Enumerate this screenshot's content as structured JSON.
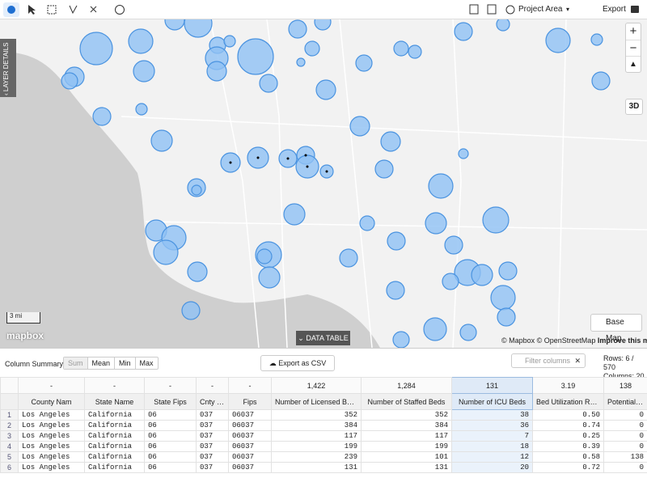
{
  "toolbar": {
    "project_area": "Project Area",
    "export": "Export"
  },
  "map": {
    "layer_details": "LAYER DETAILS",
    "zoom_in": "+",
    "zoom_out": "−",
    "btn_3d": "3D",
    "scale": "3 mi",
    "logo": "mapbox",
    "data_table": "DATA TABLE",
    "base_map": "Base Map",
    "attribution": "© Mapbox © OpenStreetMap",
    "improve": "Improve this map"
  },
  "panel": {
    "column_summary": "Column Summary:",
    "summary_options": [
      "Sum",
      "Mean",
      "Min",
      "Max"
    ],
    "export_csv": "Export as CSV",
    "filter_placeholder": "Filter columns",
    "rows_info": "Rows: 6 / 570",
    "columns_info": "Columns: 20"
  },
  "table": {
    "summary": [
      "-",
      "-",
      "-",
      "-",
      "-",
      "1,422",
      "1,284",
      "131",
      "3.19",
      "138"
    ],
    "headers": [
      "County Nam",
      "State Name",
      "State Fips",
      "Cnty Fips",
      "Fips",
      "Number of Licensed Beds",
      "Number of Staffed Beds",
      "Number of ICU Beds",
      "Bed Utilization Rate",
      "Potential In…"
    ],
    "rows": [
      [
        "1",
        "Los Angeles",
        "California",
        "06",
        "037",
        "06037",
        "352",
        "352",
        "38",
        "0.50",
        "0"
      ],
      [
        "2",
        "Los Angeles",
        "California",
        "06",
        "037",
        "06037",
        "384",
        "384",
        "36",
        "0.74",
        "0"
      ],
      [
        "3",
        "Los Angeles",
        "California",
        "06",
        "037",
        "06037",
        "117",
        "117",
        "7",
        "0.25",
        "0"
      ],
      [
        "4",
        "Los Angeles",
        "California",
        "06",
        "037",
        "06037",
        "199",
        "199",
        "18",
        "0.39",
        "0"
      ],
      [
        "5",
        "Los Angeles",
        "California",
        "06",
        "037",
        "06037",
        "239",
        "101",
        "12",
        "0.58",
        "138"
      ],
      [
        "6",
        "Los Angeles",
        "California",
        "06",
        "037",
        "06037",
        "131",
        "131",
        "20",
        "0.72",
        "0"
      ]
    ]
  }
}
